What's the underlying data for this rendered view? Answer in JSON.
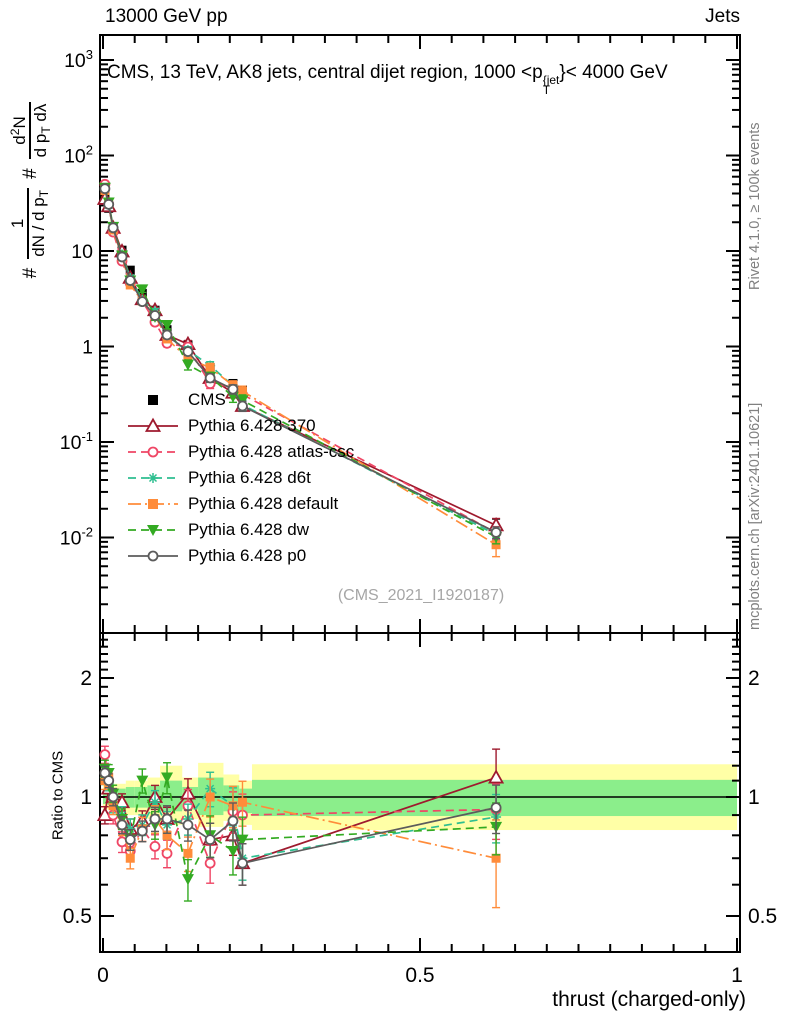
{
  "header": {
    "left": "13000 GeV pp",
    "right": "Jets"
  },
  "panel_title": {
    "prefix": "CMS, 13 TeV, AK8 jets, central dijet region, 1000 <p",
    "sup": "{jet",
    "sub": "T",
    "suffix": "}< 4000 GeV"
  },
  "ylabel": {
    "hash1": "#",
    "f1_num": "1",
    "f1_den_pre": "dN / d p",
    "f1_den_sub": "T",
    "hash2": "#",
    "f2_num_pre": "d",
    "f2_num_sup": "2",
    "f2_num_post": "N",
    "f2_den_pre": "d p",
    "f2_den_sub": "T",
    "f2_den_post": " dλ"
  },
  "ratio_ylabel": "Ratio to CMS",
  "xlabel": "thrust (charged-only)",
  "watermark": "(CMS_2021_I1920187)",
  "side_notes": {
    "top": "Rivet 4.1.0, ≥ 100k events",
    "bottom": "mcplots.cern.ch [arXiv:2401.10621]"
  },
  "legend_cms_label": "CMS",
  "chart_data": {
    "type": "line",
    "title": "CMS, 13 TeV, AK8 jets, central dijet region, 1000 < pT(jet) < 4000 GeV",
    "xlabel": "thrust (charged-only)",
    "ylabel_main": "# 1/(dN/dpT) # d2N/(dpT dlambda)",
    "ylabel_ratio": "Ratio to CMS",
    "x": [
      0.003,
      0.009,
      0.016,
      0.03,
      0.043,
      0.062,
      0.082,
      0.101,
      0.134,
      0.169,
      0.205,
      0.22,
      0.62
    ],
    "cms": {
      "name": "CMS",
      "color": "#000000",
      "marker": "square-filled",
      "values": [
        39,
        28,
        17.5,
        10.2,
        6.3,
        3.6,
        2.4,
        1.5,
        1.04,
        0.6,
        0.41,
        0.35,
        0.012
      ],
      "err": [
        0.03,
        0.03,
        0.03,
        0.03,
        0.03,
        0.03,
        0.04,
        0.04,
        0.04,
        0.05,
        0.05,
        0.05,
        0.3
      ]
    },
    "series": [
      {
        "name": "Pythia 6.428 370",
        "color": "#9e1a2e",
        "dash": "solid",
        "marker": "triangle-up-open",
        "values": [
          35.1,
          29.4,
          17.5,
          9.89,
          5.23,
          3.13,
          2.4,
          1.32,
          1.06,
          0.468,
          0.328,
          0.238,
          0.0134
        ],
        "ratio": [
          0.9,
          1.05,
          1.0,
          0.97,
          0.83,
          0.87,
          1.0,
          0.88,
          1.02,
          0.78,
          0.8,
          0.68,
          1.12
        ],
        "err": [
          0.05,
          0.05,
          0.05,
          0.05,
          0.06,
          0.06,
          0.07,
          0.07,
          0.09,
          0.1,
          0.11,
          0.12,
          0.18
        ]
      },
      {
        "name": "Pythia 6.428 atlas-csc",
        "color": "#ef4665",
        "dash": "dashed",
        "marker": "circle-open",
        "values": [
          49.9,
          30.8,
          15.8,
          7.85,
          4.6,
          2.99,
          1.8,
          1.08,
          0.988,
          0.408,
          0.377,
          0.315,
          0.0112
        ],
        "ratio": [
          1.28,
          1.1,
          0.9,
          0.77,
          0.73,
          0.83,
          0.75,
          0.72,
          0.95,
          0.68,
          0.92,
          0.9,
          0.93
        ],
        "err": [
          0.05,
          0.05,
          0.05,
          0.06,
          0.06,
          0.07,
          0.07,
          0.08,
          0.1,
          0.11,
          0.12,
          0.13,
          0.16
        ]
      },
      {
        "name": "Pythia 6.428 d6t",
        "color": "#2fbf90",
        "dash": "dashed",
        "marker": "star",
        "values": [
          43.7,
          30.2,
          16.8,
          9.18,
          5.23,
          3.06,
          2.33,
          1.28,
          0.915,
          0.63,
          0.39,
          0.245,
          0.0107
        ],
        "ratio": [
          1.12,
          1.08,
          0.96,
          0.9,
          0.83,
          0.85,
          0.97,
          0.85,
          0.88,
          1.05,
          0.95,
          0.7,
          0.89
        ],
        "err": [
          0.04,
          0.04,
          0.05,
          0.05,
          0.06,
          0.06,
          0.07,
          0.08,
          0.09,
          0.1,
          0.11,
          0.12,
          0.14
        ]
      },
      {
        "name": "Pythia 6.428 default",
        "color": "#ff8c3a",
        "dash": "dashdot",
        "marker": "square-filled",
        "values": [
          42.9,
          31.4,
          16.6,
          8.67,
          4.41,
          2.99,
          2.11,
          1.2,
          0.749,
          0.6,
          0.39,
          0.34,
          0.0084
        ],
        "ratio": [
          1.1,
          1.12,
          0.95,
          0.85,
          0.7,
          0.83,
          0.88,
          0.8,
          0.72,
          1.0,
          0.95,
          0.97,
          0.7
        ],
        "err": [
          0.05,
          0.05,
          0.05,
          0.06,
          0.06,
          0.07,
          0.08,
          0.08,
          0.1,
          0.11,
          0.12,
          0.13,
          0.25
        ]
      },
      {
        "name": "Pythia 6.428 dw",
        "color": "#33aa22",
        "dash": "dashed",
        "marker": "triangle-down-filled",
        "values": [
          46.0,
          32.2,
          17.9,
          8.98,
          4.91,
          3.96,
          2.04,
          1.68,
          0.645,
          0.48,
          0.299,
          0.273,
          0.0101
        ],
        "ratio": [
          1.18,
          1.15,
          1.02,
          0.88,
          0.78,
          1.1,
          0.85,
          1.12,
          0.62,
          0.8,
          0.73,
          0.78,
          0.84
        ],
        "err": [
          0.05,
          0.05,
          0.05,
          0.06,
          0.06,
          0.07,
          0.08,
          0.09,
          0.12,
          0.12,
          0.13,
          0.14,
          0.15
        ]
      },
      {
        "name": "Pythia 6.428 p0",
        "color": "#5c5c5c",
        "dash": "solid",
        "marker": "circle-open",
        "values": [
          44.9,
          30.8,
          17.5,
          8.67,
          4.91,
          2.95,
          2.11,
          1.32,
          0.884,
          0.468,
          0.357,
          0.238,
          0.0113
        ],
        "ratio": [
          1.15,
          1.1,
          1.0,
          0.85,
          0.78,
          0.82,
          0.88,
          0.88,
          0.85,
          0.78,
          0.87,
          0.68,
          0.94
        ],
        "err": [
          0.04,
          0.04,
          0.05,
          0.05,
          0.06,
          0.06,
          0.07,
          0.08,
          0.09,
          0.1,
          0.11,
          0.12,
          0.14
        ]
      }
    ],
    "axes": {
      "x": {
        "min": 0,
        "max": 1,
        "minor_step": 0.05,
        "ticks": [
          {
            "v": 0,
            "label": "0"
          },
          {
            "v": 0.5,
            "label": "0.5"
          },
          {
            "v": 1,
            "label": "1"
          }
        ]
      },
      "y_main": {
        "scale": "log",
        "min": 0.001,
        "max": 1820,
        "ticks": [
          {
            "v": 1000,
            "base": "10",
            "exp": "3"
          },
          {
            "v": 100,
            "base": "10",
            "exp": "2"
          },
          {
            "v": 10,
            "label": "10"
          },
          {
            "v": 1,
            "label": "1"
          },
          {
            "v": 0.1,
            "base": "10",
            "exp": "-1"
          },
          {
            "v": 0.01,
            "base": "10",
            "exp": "-2"
          }
        ]
      },
      "y_ratio": {
        "scale": "log",
        "min": 0.4,
        "max": 2.6,
        "ticks": [
          {
            "v": 2,
            "label": "2"
          },
          {
            "v": 1,
            "label": "1"
          },
          {
            "v": 0.5,
            "label": "0.5"
          }
        ]
      }
    },
    "bands": {
      "yellow": "#ffffa6",
      "green": "#8bee8b",
      "segments": [
        {
          "x0": 0.0,
          "x1": 0.012,
          "ylo": 0.93,
          "yhi": 1.07,
          "glo": 0.96,
          "ghi": 1.04
        },
        {
          "x0": 0.012,
          "x1": 0.023,
          "ylo": 0.92,
          "yhi": 1.08,
          "glo": 0.95,
          "ghi": 1.05
        },
        {
          "x0": 0.023,
          "x1": 0.036,
          "ylo": 0.92,
          "yhi": 1.08,
          "glo": 0.95,
          "ghi": 1.05
        },
        {
          "x0": 0.036,
          "x1": 0.05,
          "ylo": 0.9,
          "yhi": 1.1,
          "glo": 0.94,
          "ghi": 1.06
        },
        {
          "x0": 0.05,
          "x1": 0.07,
          "ylo": 0.9,
          "yhi": 1.1,
          "glo": 0.94,
          "ghi": 1.06
        },
        {
          "x0": 0.07,
          "x1": 0.09,
          "ylo": 0.88,
          "yhi": 1.12,
          "glo": 0.93,
          "ghi": 1.07
        },
        {
          "x0": 0.09,
          "x1": 0.125,
          "ylo": 0.85,
          "yhi": 1.2,
          "glo": 0.92,
          "ghi": 1.1
        },
        {
          "x0": 0.125,
          "x1": 0.15,
          "ylo": 0.88,
          "yhi": 1.12,
          "glo": 0.93,
          "ghi": 1.06
        },
        {
          "x0": 0.15,
          "x1": 0.19,
          "ylo": 0.84,
          "yhi": 1.22,
          "glo": 0.9,
          "ghi": 1.12
        },
        {
          "x0": 0.19,
          "x1": 0.215,
          "ylo": 0.87,
          "yhi": 1.14,
          "glo": 0.92,
          "ghi": 1.07
        },
        {
          "x0": 0.215,
          "x1": 0.235,
          "ylo": 0.85,
          "yhi": 1.1,
          "glo": 0.91,
          "ghi": 1.05
        },
        {
          "x0": 0.235,
          "x1": 1.0,
          "ylo": 0.825,
          "yhi": 1.21,
          "glo": 0.895,
          "ghi": 1.105
        }
      ]
    }
  }
}
